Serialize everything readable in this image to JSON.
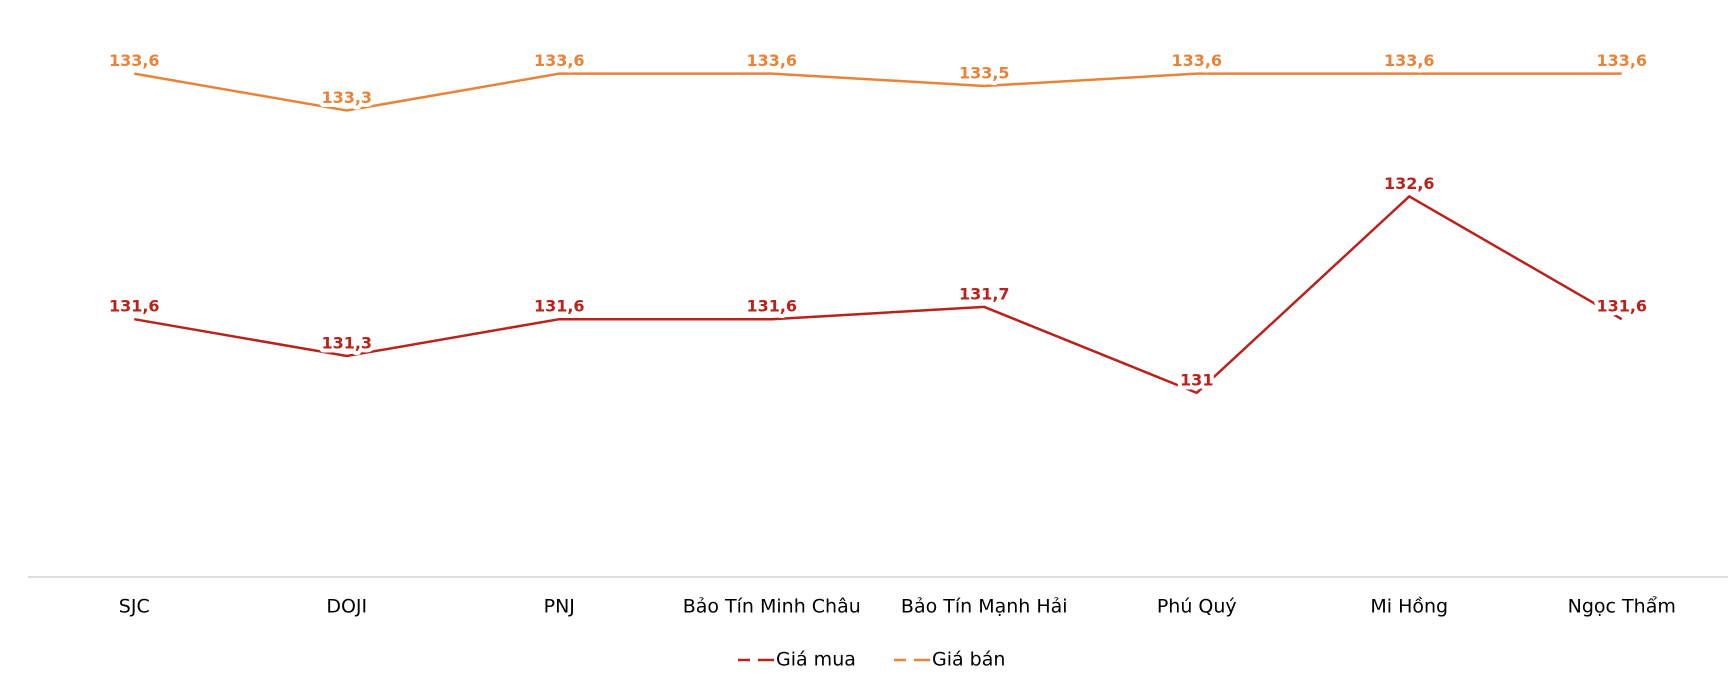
{
  "chart_data": {
    "type": "line",
    "categories": [
      "SJC",
      "DOJI",
      "PNJ",
      "Bảo Tín Minh Châu",
      "Bảo Tín Mạnh Hải",
      "Phú Quý",
      "Mi Hồng",
      "Ngọc Thẩm"
    ],
    "series": [
      {
        "name": "Giá mua",
        "color": "#b8231c",
        "values": [
          131.6,
          131.3,
          131.6,
          131.6,
          131.7,
          131,
          132.6,
          131.6
        ],
        "value_labels": [
          "131,6",
          "131,3",
          "131,6",
          "131,6",
          "131,7",
          "131",
          "132,6",
          "131,6"
        ]
      },
      {
        "name": "Giá bán",
        "color": "#e8843a",
        "values": [
          133.6,
          133.3,
          133.6,
          133.6,
          133.5,
          133.6,
          133.6,
          133.6
        ],
        "value_labels": [
          "133,6",
          "133,3",
          "133,6",
          "133,6",
          "133,5",
          "133,6",
          "133,6",
          "133,6"
        ]
      }
    ],
    "ylim": [
      129.5,
      134.2
    ],
    "legend": "bottom"
  }
}
